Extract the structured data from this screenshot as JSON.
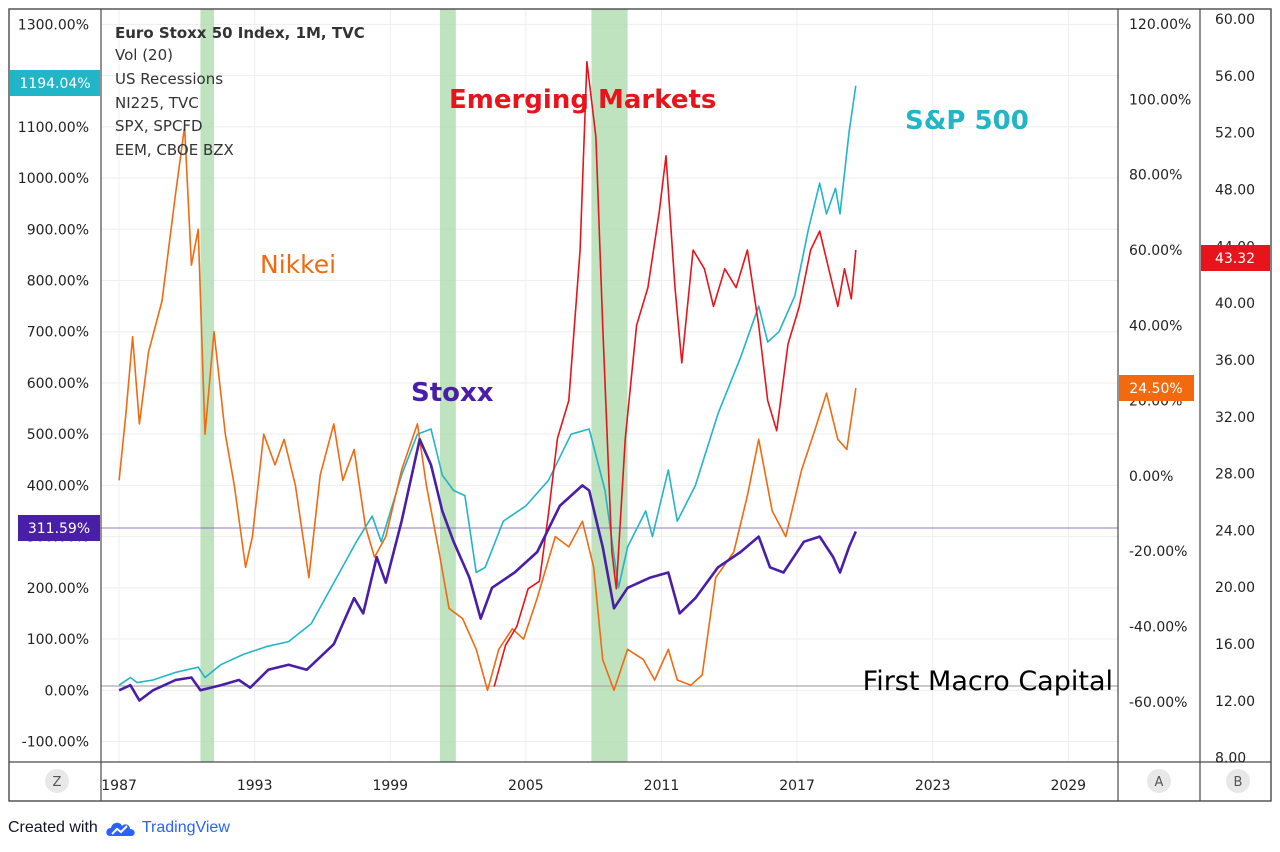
{
  "legend_lines": [
    "Euro Stoxx 50 Index, 1M, TVC",
    "Vol (20)",
    "US Recessions",
    "NI225, TVC",
    "SPX, SPCFD",
    "EEM, CBOE BZX"
  ],
  "annotations": {
    "nikkei": "Nikkei",
    "emerging": "Emerging Markets",
    "sp500": "S&P 500",
    "stoxx": "Stoxx",
    "watermark": "First Macro Capital"
  },
  "badges": {
    "left_top": "1194.04%",
    "left_mid": "311.59%",
    "right_red": "43.32",
    "right_orange": "24.50%"
  },
  "corner_buttons": {
    "z": "Z",
    "a": "A",
    "b": "B"
  },
  "footer": {
    "created_with": "Created with",
    "brand": "TradingView"
  },
  "colors": {
    "stoxx": "#4a1fa8",
    "sp500": "#22b5c8",
    "nikkei": "#f26a10",
    "emerging": "#e8141c",
    "recession": "#a9d8a9",
    "grid": "#eeeeee",
    "frame": "#4a4a4a"
  },
  "chart_data": {
    "type": "line",
    "x_ticks": [
      "1987",
      "1993",
      "1999",
      "2005",
      "2011",
      "2017",
      "2023",
      "2029"
    ],
    "x_range": [
      1986.2,
      2031.2
    ],
    "left_axis": {
      "ticks": [
        "1300.00%",
        "1200.00%",
        "1100.00%",
        "1000.00%",
        "900.00%",
        "800.00%",
        "700.00%",
        "600.00%",
        "500.00%",
        "400.00%",
        "300.00%",
        "200.00%",
        "100.00%",
        "0.00%",
        "-100.00%"
      ],
      "range": [
        -140,
        1330
      ]
    },
    "right_axis_a": {
      "ticks": [
        "120.00%",
        "100.00%",
        "80.00%",
        "60.00%",
        "40.00%",
        "20.00%",
        "0.00%",
        "-20.00%",
        "-40.00%",
        "-60.00%"
      ],
      "range": [
        -76,
        124
      ]
    },
    "right_axis_b": {
      "ticks": [
        "60.00",
        "56.00",
        "52.00",
        "48.00",
        "44.00",
        "40.00",
        "36.00",
        "32.00",
        "28.00",
        "24.00",
        "20.00",
        "16.00",
        "12.00",
        "8.00"
      ],
      "range": [
        7.7,
        60.7
      ]
    },
    "recessions": [
      [
        1990.6,
        1991.2
      ],
      [
        2001.2,
        2001.9
      ],
      [
        2007.9,
        2009.5
      ]
    ],
    "series": [
      {
        "key": "sp500",
        "axis": "left",
        "points": [
          [
            1987.0,
            10
          ],
          [
            1987.5,
            25
          ],
          [
            1987.8,
            15
          ],
          [
            1988.5,
            20
          ],
          [
            1989.5,
            35
          ],
          [
            1990.5,
            45
          ],
          [
            1990.8,
            25
          ],
          [
            1991.5,
            50
          ],
          [
            1992.5,
            70
          ],
          [
            1993.5,
            85
          ],
          [
            1994.5,
            95
          ],
          [
            1995.5,
            130
          ],
          [
            1996.5,
            210
          ],
          [
            1997.5,
            290
          ],
          [
            1998.2,
            340
          ],
          [
            1998.6,
            290
          ],
          [
            1999.5,
            420
          ],
          [
            2000.2,
            500
          ],
          [
            2000.8,
            510
          ],
          [
            2001.3,
            420
          ],
          [
            2001.8,
            390
          ],
          [
            2002.3,
            380
          ],
          [
            2002.8,
            230
          ],
          [
            2003.2,
            240
          ],
          [
            2004.0,
            330
          ],
          [
            2005.0,
            360
          ],
          [
            2006.0,
            410
          ],
          [
            2007.0,
            500
          ],
          [
            2007.8,
            510
          ],
          [
            2008.5,
            390
          ],
          [
            2009.1,
            200
          ],
          [
            2009.5,
            280
          ],
          [
            2010.3,
            350
          ],
          [
            2010.6,
            300
          ],
          [
            2011.3,
            430
          ],
          [
            2011.7,
            330
          ],
          [
            2012.5,
            400
          ],
          [
            2013.5,
            540
          ],
          [
            2014.5,
            650
          ],
          [
            2015.3,
            750
          ],
          [
            2015.7,
            680
          ],
          [
            2016.2,
            700
          ],
          [
            2016.9,
            770
          ],
          [
            2017.5,
            900
          ],
          [
            2018.0,
            990
          ],
          [
            2018.3,
            930
          ],
          [
            2018.7,
            980
          ],
          [
            2018.9,
            930
          ],
          [
            2019.3,
            1090
          ],
          [
            2019.6,
            1180
          ]
        ]
      },
      {
        "key": "stoxx",
        "axis": "left",
        "points": [
          [
            1987.0,
            0
          ],
          [
            1987.5,
            10
          ],
          [
            1987.9,
            -20
          ],
          [
            1988.5,
            0
          ],
          [
            1989.5,
            20
          ],
          [
            1990.2,
            25
          ],
          [
            1990.6,
            0
          ],
          [
            1991.5,
            10
          ],
          [
            1992.3,
            20
          ],
          [
            1992.8,
            5
          ],
          [
            1993.6,
            40
          ],
          [
            1994.5,
            50
          ],
          [
            1995.3,
            40
          ],
          [
            1996.5,
            90
          ],
          [
            1997.4,
            180
          ],
          [
            1997.8,
            150
          ],
          [
            1998.4,
            260
          ],
          [
            1998.8,
            210
          ],
          [
            1999.5,
            330
          ],
          [
            2000.3,
            490
          ],
          [
            2000.8,
            440
          ],
          [
            2001.3,
            350
          ],
          [
            2001.8,
            290
          ],
          [
            2002.5,
            220
          ],
          [
            2003.0,
            140
          ],
          [
            2003.5,
            200
          ],
          [
            2004.5,
            230
          ],
          [
            2005.5,
            270
          ],
          [
            2006.5,
            360
          ],
          [
            2007.5,
            400
          ],
          [
            2007.8,
            390
          ],
          [
            2008.4,
            280
          ],
          [
            2008.9,
            160
          ],
          [
            2009.5,
            200
          ],
          [
            2010.5,
            220
          ],
          [
            2011.3,
            230
          ],
          [
            2011.8,
            150
          ],
          [
            2012.5,
            180
          ],
          [
            2013.5,
            240
          ],
          [
            2014.5,
            270
          ],
          [
            2015.3,
            300
          ],
          [
            2015.8,
            240
          ],
          [
            2016.4,
            230
          ],
          [
            2017.3,
            290
          ],
          [
            2018.0,
            300
          ],
          [
            2018.6,
            260
          ],
          [
            2018.9,
            230
          ],
          [
            2019.3,
            280
          ],
          [
            2019.6,
            310
          ]
        ]
      },
      {
        "key": "nikkei",
        "axis": "left",
        "points": [
          [
            1987.0,
            410
          ],
          [
            1987.3,
            540
          ],
          [
            1987.6,
            690
          ],
          [
            1987.9,
            520
          ],
          [
            1988.3,
            660
          ],
          [
            1988.9,
            760
          ],
          [
            1989.5,
            970
          ],
          [
            1989.9,
            1100
          ],
          [
            1990.2,
            830
          ],
          [
            1990.5,
            900
          ],
          [
            1990.8,
            500
          ],
          [
            1991.2,
            700
          ],
          [
            1991.7,
            500
          ],
          [
            1992.1,
            400
          ],
          [
            1992.6,
            240
          ],
          [
            1992.9,
            300
          ],
          [
            1993.4,
            500
          ],
          [
            1993.9,
            440
          ],
          [
            1994.3,
            490
          ],
          [
            1994.8,
            400
          ],
          [
            1995.4,
            220
          ],
          [
            1995.9,
            420
          ],
          [
            1996.5,
            520
          ],
          [
            1996.9,
            410
          ],
          [
            1997.4,
            470
          ],
          [
            1997.9,
            320
          ],
          [
            1998.3,
            260
          ],
          [
            1998.8,
            300
          ],
          [
            1999.5,
            430
          ],
          [
            2000.2,
            520
          ],
          [
            2000.6,
            400
          ],
          [
            2001.2,
            260
          ],
          [
            2001.6,
            160
          ],
          [
            2002.2,
            140
          ],
          [
            2002.8,
            80
          ],
          [
            2003.3,
            0
          ],
          [
            2003.8,
            80
          ],
          [
            2004.4,
            120
          ],
          [
            2004.9,
            100
          ],
          [
            2005.5,
            180
          ],
          [
            2006.3,
            300
          ],
          [
            2006.9,
            280
          ],
          [
            2007.5,
            330
          ],
          [
            2008.0,
            240
          ],
          [
            2008.4,
            60
          ],
          [
            2008.9,
            0
          ],
          [
            2009.5,
            80
          ],
          [
            2010.2,
            60
          ],
          [
            2010.7,
            20
          ],
          [
            2011.3,
            80
          ],
          [
            2011.7,
            20
          ],
          [
            2012.3,
            10
          ],
          [
            2012.8,
            30
          ],
          [
            2013.4,
            220
          ],
          [
            2014.2,
            270
          ],
          [
            2014.8,
            380
          ],
          [
            2015.3,
            490
          ],
          [
            2015.9,
            350
          ],
          [
            2016.5,
            300
          ],
          [
            2017.2,
            430
          ],
          [
            2017.8,
            510
          ],
          [
            2018.3,
            580
          ],
          [
            2018.8,
            490
          ],
          [
            2019.2,
            470
          ],
          [
            2019.6,
            590
          ]
        ]
      },
      {
        "key": "emerging",
        "axis": "right_a",
        "points": [
          [
            2003.6,
            -56
          ],
          [
            2004.1,
            -45
          ],
          [
            2004.6,
            -40
          ],
          [
            2005.1,
            -30
          ],
          [
            2005.6,
            -28
          ],
          [
            2006.0,
            -10
          ],
          [
            2006.4,
            10
          ],
          [
            2006.9,
            20
          ],
          [
            2007.4,
            60
          ],
          [
            2007.7,
            110
          ],
          [
            2008.1,
            90
          ],
          [
            2008.4,
            40
          ],
          [
            2008.8,
            -20
          ],
          [
            2009.0,
            -30
          ],
          [
            2009.4,
            10
          ],
          [
            2009.9,
            40
          ],
          [
            2010.4,
            50
          ],
          [
            2010.9,
            70
          ],
          [
            2011.2,
            85
          ],
          [
            2011.6,
            50
          ],
          [
            2011.9,
            30
          ],
          [
            2012.4,
            60
          ],
          [
            2012.9,
            55
          ],
          [
            2013.3,
            45
          ],
          [
            2013.8,
            55
          ],
          [
            2014.3,
            50
          ],
          [
            2014.8,
            60
          ],
          [
            2015.3,
            40
          ],
          [
            2015.7,
            20
          ],
          [
            2016.1,
            12
          ],
          [
            2016.6,
            35
          ],
          [
            2017.1,
            45
          ],
          [
            2017.6,
            60
          ],
          [
            2018.0,
            65
          ],
          [
            2018.4,
            55
          ],
          [
            2018.8,
            45
          ],
          [
            2019.1,
            55
          ],
          [
            2019.4,
            47
          ],
          [
            2019.6,
            60
          ]
        ]
      }
    ]
  }
}
